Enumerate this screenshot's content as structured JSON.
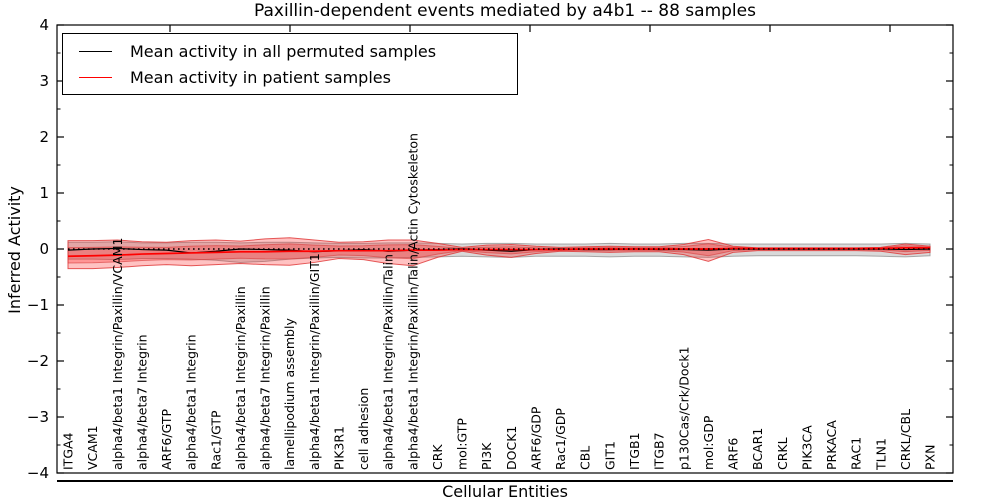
{
  "chart_data": {
    "type": "line",
    "title": "Paxillin-dependent events mediated by a4b1 -- 88 samples",
    "xlabel": "Cellular Entities",
    "ylabel": "Inferred Activity",
    "ylim": [
      -4,
      4
    ],
    "grid": false,
    "legend_position": "upper left",
    "categories": [
      "ITGA4",
      "VCAM1",
      "alpha4/beta1 Integrin/Paxillin/VCAM1",
      "alpha4/beta7 Integrin",
      "ARF6/GTP",
      "alpha4/beta1 Integrin",
      "Rac1/GTP",
      "alpha4/beta1 Integrin/Paxillin",
      "alpha4/beta7 Integrin/Paxillin",
      "lamellipodium assembly",
      "alpha4/beta1 Integrin/Paxillin/GIT1",
      "PIK3R1",
      "cell adhesion",
      "alpha4/beta1 Integrin/Paxillin/Talin",
      "alpha4/beta1 Integrin/Paxillin/Talin/Actin Cytoskeleton",
      "CRK",
      "mol:GTP",
      "PI3K",
      "DOCK1",
      "ARF6/GDP",
      "Rac1/GDP",
      "CBL",
      "GIT1",
      "ITGB1",
      "ITGB7",
      "p130Cas/Crk/Dock1",
      "mol:GDP",
      "ARF6",
      "BCAR1",
      "CRKL",
      "PIK3CA",
      "PRKACA",
      "RAC1",
      "TLN1",
      "CRKL/CBL",
      "PXN"
    ],
    "series": [
      {
        "name": "Mean activity in all permuted samples",
        "color": "#000000",
        "values": [
          -0.02,
          0.0,
          0.01,
          -0.01,
          -0.02,
          -0.07,
          -0.04,
          0.0,
          -0.01,
          -0.02,
          -0.05,
          -0.03,
          -0.01,
          -0.04,
          -0.02,
          -0.01,
          0.0,
          -0.02,
          -0.04,
          -0.01,
          0.0,
          -0.01,
          -0.01,
          0.0,
          -0.01,
          -0.01,
          -0.02,
          0.0,
          0.0,
          0.0,
          0.0,
          0.0,
          0.0,
          0.0,
          -0.01,
          0.0
        ]
      },
      {
        "name": "Mean activity in patient samples",
        "color": "#ff0000",
        "values": [
          -0.13,
          -0.12,
          -0.11,
          -0.09,
          -0.08,
          -0.07,
          -0.06,
          -0.05,
          -0.05,
          -0.04,
          -0.04,
          -0.03,
          -0.03,
          -0.03,
          -0.02,
          -0.02,
          -0.01,
          -0.01,
          -0.01,
          -0.01,
          -0.01,
          0.0,
          0.0,
          0.0,
          0.0,
          0.0,
          0.0,
          0.01,
          0.01,
          0.01,
          0.01,
          0.01,
          0.01,
          0.01,
          0.02,
          0.02
        ]
      }
    ],
    "bands": [
      {
        "name": "permuted-samples-range",
        "color": "#787878",
        "upper": [
          0.12,
          0.12,
          0.13,
          0.11,
          0.11,
          0.12,
          0.12,
          0.11,
          0.12,
          0.12,
          0.11,
          0.1,
          0.1,
          0.11,
          0.11,
          0.1,
          0.09,
          0.1,
          0.1,
          0.09,
          0.09,
          0.09,
          0.1,
          0.09,
          0.09,
          0.1,
          0.1,
          0.09,
          0.09,
          0.09,
          0.09,
          0.09,
          0.09,
          0.09,
          0.1,
          0.09
        ],
        "lower": [
          -0.18,
          -0.18,
          -0.19,
          -0.17,
          -0.17,
          -0.18,
          -0.2,
          -0.24,
          -0.22,
          -0.18,
          -0.16,
          -0.15,
          -0.16,
          -0.16,
          -0.15,
          -0.14,
          -0.13,
          -0.14,
          -0.15,
          -0.13,
          -0.13,
          -0.13,
          -0.14,
          -0.13,
          -0.13,
          -0.14,
          -0.15,
          -0.13,
          -0.12,
          -0.12,
          -0.12,
          -0.12,
          -0.12,
          -0.13,
          -0.14,
          -0.12
        ]
      },
      {
        "name": "patient-samples-range",
        "color": "#ff0000",
        "upper": [
          0.15,
          0.15,
          0.16,
          0.13,
          0.12,
          0.15,
          0.16,
          0.14,
          0.18,
          0.2,
          0.16,
          0.12,
          0.13,
          0.16,
          0.16,
          0.1,
          0.03,
          0.07,
          0.08,
          0.05,
          0.03,
          0.04,
          0.05,
          0.04,
          0.04,
          0.08,
          0.17,
          0.05,
          0.02,
          0.02,
          0.02,
          0.02,
          0.02,
          0.03,
          0.09,
          0.05
        ],
        "lower": [
          -0.35,
          -0.35,
          -0.33,
          -0.3,
          -0.28,
          -0.3,
          -0.28,
          -0.26,
          -0.28,
          -0.29,
          -0.24,
          -0.17,
          -0.19,
          -0.26,
          -0.3,
          -0.15,
          -0.04,
          -0.11,
          -0.15,
          -0.08,
          -0.04,
          -0.05,
          -0.06,
          -0.05,
          -0.05,
          -0.1,
          -0.22,
          -0.06,
          -0.03,
          -0.03,
          -0.03,
          -0.03,
          -0.03,
          -0.04,
          -0.1,
          -0.06
        ]
      }
    ],
    "reference_line": {
      "y": 0,
      "style": "dotted",
      "color": "#000000"
    },
    "yticks": [
      {
        "value": 4,
        "label": "4"
      },
      {
        "value": 3,
        "label": "3"
      },
      {
        "value": 2,
        "label": "2"
      },
      {
        "value": 1,
        "label": "1"
      },
      {
        "value": 0,
        "label": "0"
      },
      {
        "value": -1,
        "label": "−1"
      },
      {
        "value": -2,
        "label": "−2"
      },
      {
        "value": -3,
        "label": "−3"
      },
      {
        "value": -4,
        "label": "−4"
      }
    ],
    "minor_tick_step": 0.5,
    "legend": {
      "entries": [
        {
          "label": "Mean activity in all permuted samples",
          "color": "#000000"
        },
        {
          "label": "Mean activity in patient samples",
          "color": "#ff0000"
        }
      ]
    }
  }
}
